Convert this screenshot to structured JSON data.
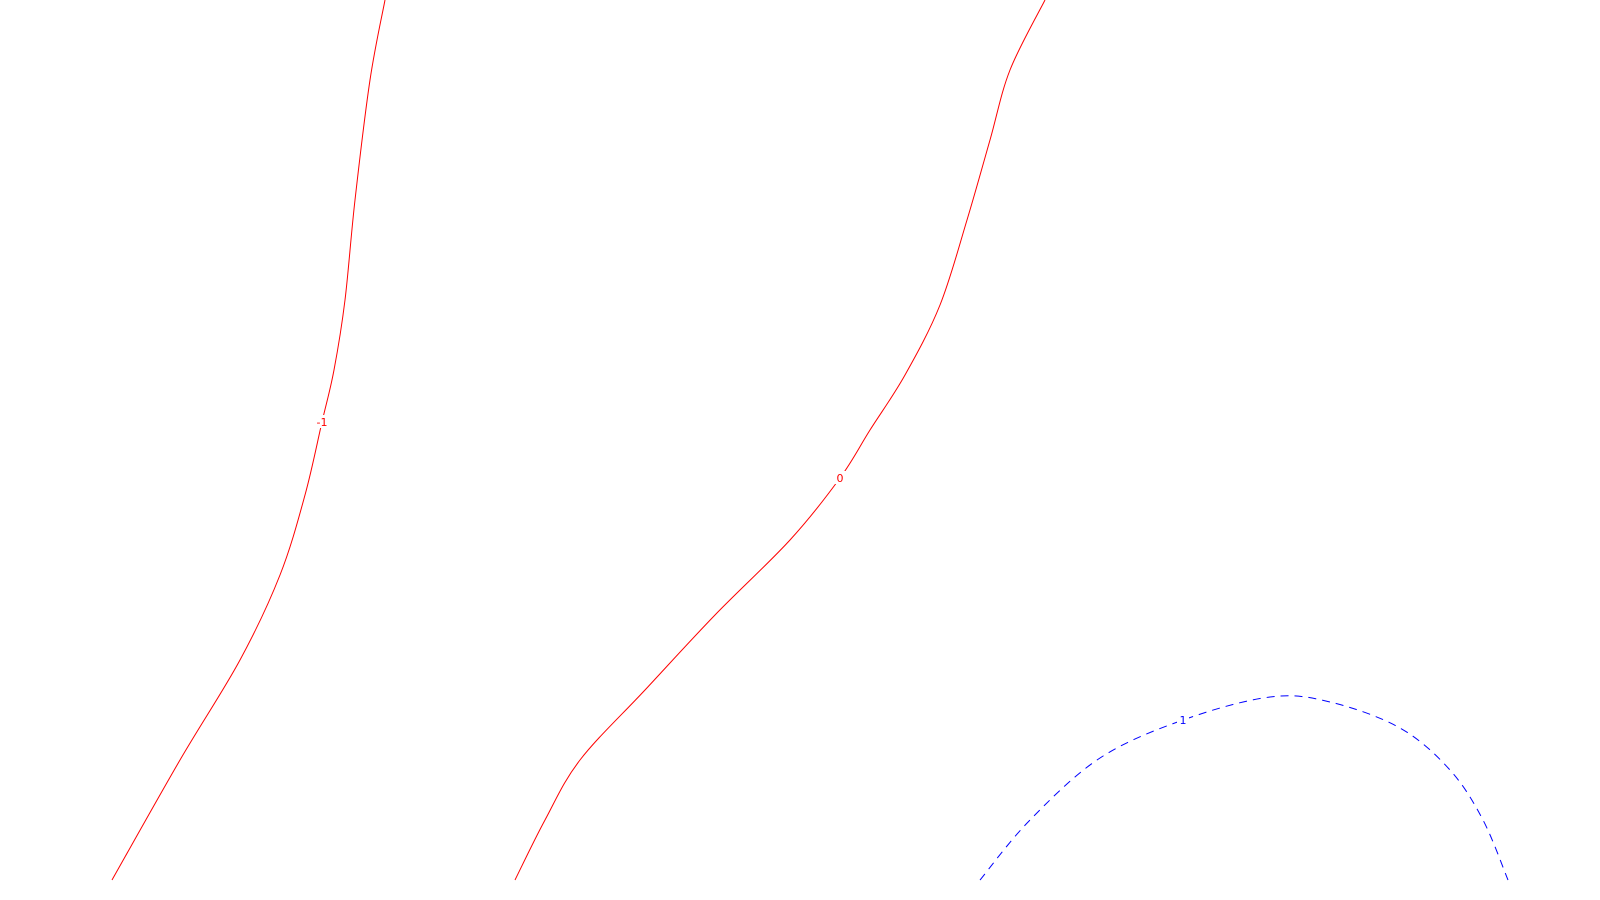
{
  "chart_data": {
    "type": "contour",
    "title": "",
    "xlabel": "",
    "ylabel": "",
    "grid": false,
    "legend": "none",
    "contours": [
      {
        "level": -1,
        "label": "-1",
        "color": "#ff0000",
        "style": "solid",
        "points": [
          [
            385,
            0
          ],
          [
            370,
            80
          ],
          [
            355,
            200
          ],
          [
            345,
            300
          ],
          [
            334,
            370
          ],
          [
            322,
            422
          ],
          [
            305,
            495
          ],
          [
            280,
            575
          ],
          [
            240,
            660
          ],
          [
            180,
            760
          ],
          [
            112,
            880
          ]
        ]
      },
      {
        "level": 0,
        "label": "0",
        "color": "#ff0000",
        "style": "solid",
        "points": [
          [
            1045,
            0
          ],
          [
            1010,
            70
          ],
          [
            990,
            140
          ],
          [
            967,
            220
          ],
          [
            940,
            305
          ],
          [
            905,
            375
          ],
          [
            870,
            430
          ],
          [
            840,
            478
          ],
          [
            790,
            540
          ],
          [
            715,
            615
          ],
          [
            645,
            690
          ],
          [
            580,
            760
          ],
          [
            545,
            820
          ],
          [
            515,
            880
          ]
        ]
      },
      {
        "level": 1,
        "label": "1",
        "color": "#0000ff",
        "style": "dashed",
        "points": [
          [
            980,
            880
          ],
          [
            1030,
            820
          ],
          [
            1100,
            758
          ],
          [
            1183,
            720
          ],
          [
            1270,
            697
          ],
          [
            1330,
            702
          ],
          [
            1400,
            728
          ],
          [
            1450,
            770
          ],
          [
            1483,
            820
          ],
          [
            1508,
            880
          ]
        ]
      }
    ]
  }
}
